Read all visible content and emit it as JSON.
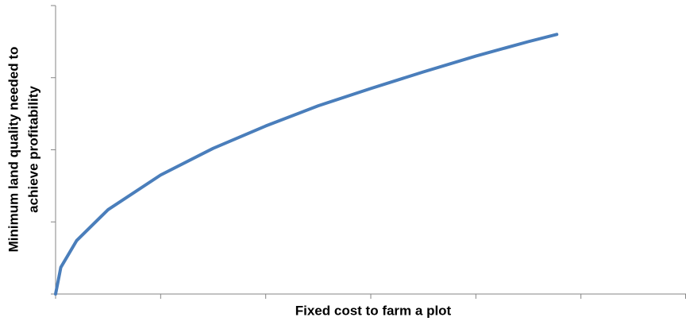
{
  "chart_data": {
    "type": "line",
    "x_label": "Fixed cost to farm a plot",
    "y_label": [
      "Minimum land quality needed to",
      "achieve profitability"
    ],
    "x": [
      0,
      0.05,
      0.2,
      0.5,
      1,
      1.5,
      2,
      2.5,
      3,
      3.5,
      4,
      4.5,
      4.77
    ],
    "series": [
      {
        "color": "#4a7ebb",
        "values": [
          0,
          0.37,
          0.74,
          1.17,
          1.65,
          2.02,
          2.33,
          2.61,
          2.85,
          3.08,
          3.3,
          3.5,
          3.6
        ]
      }
    ],
    "xlim": [
      0,
      6
    ],
    "xticks": [
      0,
      1,
      2,
      3,
      4,
      5,
      6
    ],
    "ylim": [
      0,
      4
    ],
    "yticks": [
      0,
      1,
      2,
      3,
      4
    ],
    "grid": false
  }
}
